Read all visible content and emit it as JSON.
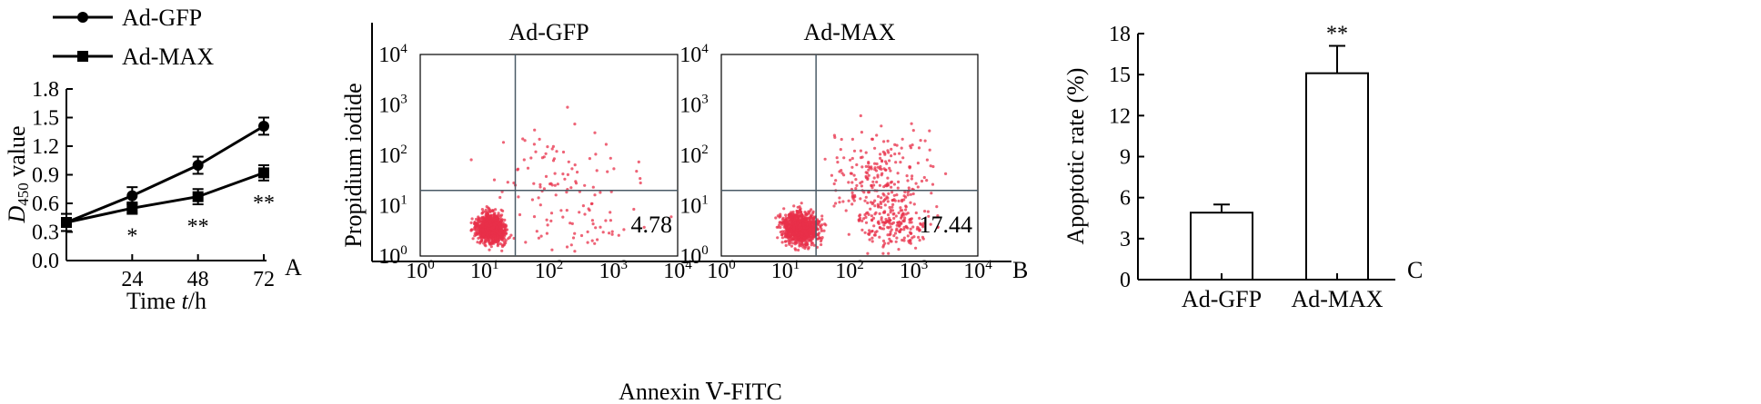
{
  "chart_data": [
    {
      "panel": "A",
      "type": "line",
      "xlabel_parts": [
        "Time ",
        "t",
        "/h"
      ],
      "ylabel_parts": [
        "D",
        "450",
        " value"
      ],
      "x_ticks": [
        "24",
        "48",
        "72"
      ],
      "y_ticks": [
        "0.0",
        "0.3",
        "0.6",
        "0.9",
        "1.2",
        "1.5",
        "1.8"
      ],
      "xlim": [
        0,
        72
      ],
      "ylim": [
        0,
        1.8
      ],
      "legend_position": "top-left",
      "x": [
        0,
        24,
        48,
        72
      ],
      "series": [
        {
          "name": "Ad-GFP",
          "marker": "circle",
          "values": [
            0.4,
            0.68,
            1.0,
            1.41
          ],
          "errors": [
            0.09,
            0.09,
            0.09,
            0.09
          ]
        },
        {
          "name": "Ad-MAX",
          "marker": "square",
          "values": [
            0.4,
            0.55,
            0.67,
            0.92
          ],
          "errors": [
            0.09,
            0.06,
            0.08,
            0.08
          ]
        }
      ],
      "annotations": [
        {
          "x": 24,
          "text": "*"
        },
        {
          "x": 48,
          "text": "**"
        },
        {
          "x": 72,
          "text": "**"
        }
      ],
      "panel_label": "A"
    },
    {
      "panel": "B",
      "type": "scatter",
      "xlabel": "Annexin Ⅴ-FITC",
      "ylabel": "Propidium iodide",
      "scale": "log",
      "x_tick_exponents": [
        "0",
        "1",
        "2",
        "3",
        "4"
      ],
      "y_tick_exponents": [
        "0",
        "1",
        "2",
        "3",
        "4"
      ],
      "tick_base": "10",
      "xlim": [
        1,
        10000
      ],
      "ylim": [
        1,
        10000
      ],
      "point_color": "#e8304a",
      "gate_x": 30,
      "gate_y": 20,
      "plots": [
        {
          "title": "Ad-GFP",
          "value_label": "4.78"
        },
        {
          "title": "Ad-MAX",
          "value_label": "17.44"
        }
      ],
      "panel_label": "B"
    },
    {
      "panel": "C",
      "type": "bar",
      "categories": [
        "Ad-GFP",
        "Ad-MAX"
      ],
      "values": [
        4.9,
        15.1
      ],
      "errors": [
        0.6,
        2.0
      ],
      "ylabel": "Apoptotic rate (%)",
      "y_ticks": [
        "0",
        "3",
        "6",
        "9",
        "12",
        "15",
        "18"
      ],
      "ylim": [
        0,
        18
      ],
      "annotations": [
        {
          "category": "Ad-MAX",
          "text": "**"
        }
      ],
      "panel_label": "C"
    }
  ]
}
